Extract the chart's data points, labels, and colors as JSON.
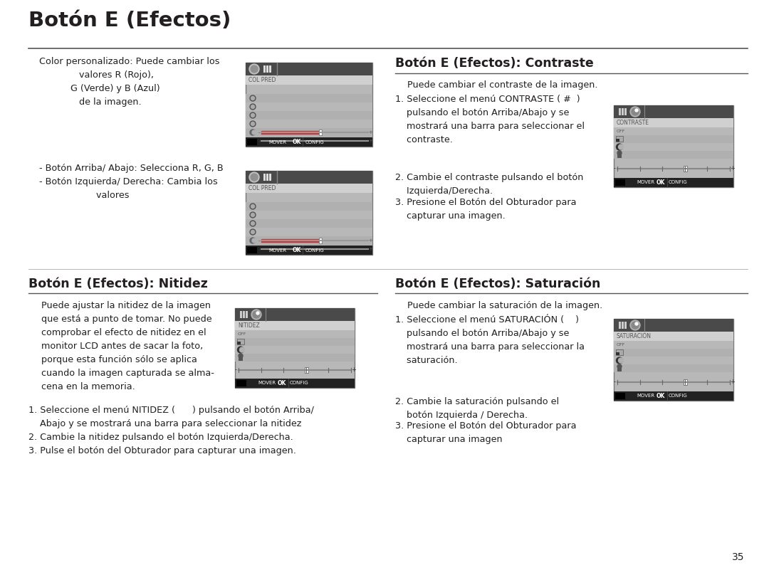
{
  "title": "Botón E (Efectos)",
  "bg_color": "#ffffff",
  "text_color": "#231f20",
  "page_number": "35",
  "contraste_title": "Botón E (Efectos): Contraste",
  "nitidez_title": "Botón E (Efectos): Nitidez",
  "saturacion_title": "Botón E (Efectos): Saturación"
}
